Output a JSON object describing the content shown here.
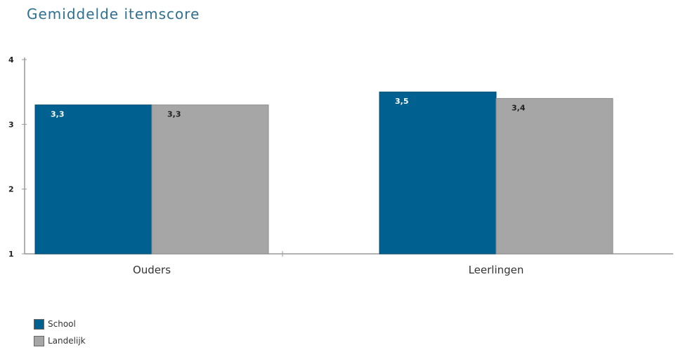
{
  "chart_data": {
    "type": "bar",
    "title": "Gemiddelde itemscore",
    "categories": [
      "Ouders",
      "Leerlingen"
    ],
    "series": [
      {
        "name": "School",
        "values": [
          3.3,
          3.5
        ],
        "labels": [
          "3,3",
          "3,5"
        ],
        "color": "#00608f",
        "label_color": "#ffffff"
      },
      {
        "name": "Landelijk",
        "values": [
          3.3,
          3.4
        ],
        "labels": [
          "3,3",
          "3,4"
        ],
        "color": "#a6a6a6",
        "label_color": "#222222"
      }
    ],
    "yticks": [
      "1",
      "2",
      "3",
      "4"
    ],
    "ylim": [
      1,
      4
    ],
    "grid": false,
    "legend_position": "bottom-left"
  }
}
